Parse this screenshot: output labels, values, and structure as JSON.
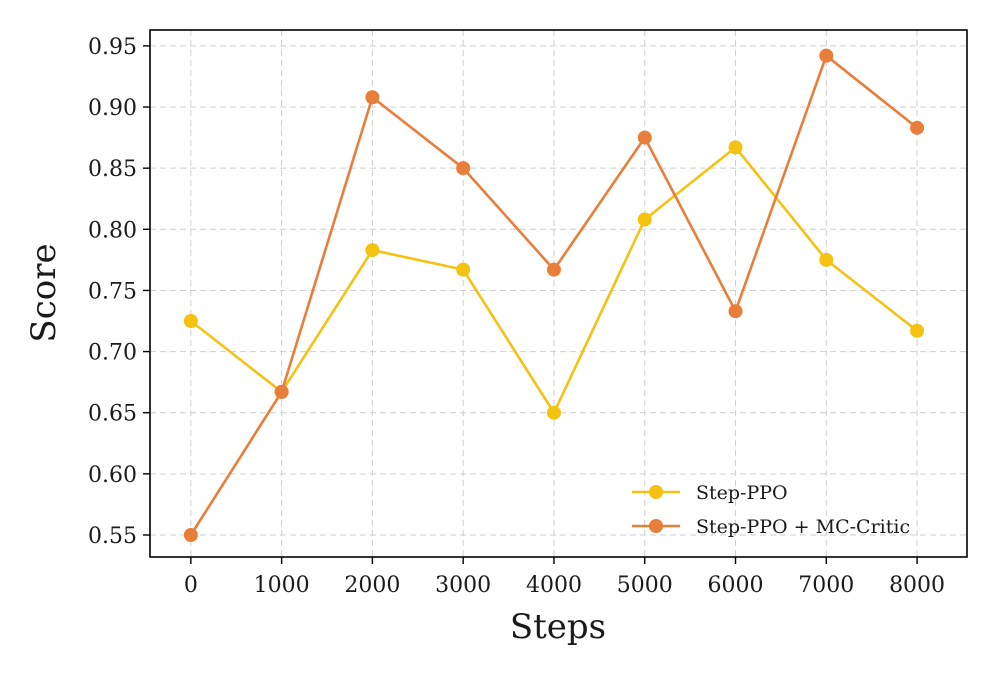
{
  "chart_data": {
    "type": "line",
    "title": "",
    "xlabel": "Steps",
    "ylabel": "Score",
    "x": [
      0,
      1000,
      2000,
      3000,
      4000,
      5000,
      6000,
      7000,
      8000
    ],
    "xlim": [
      -450,
      8550
    ],
    "ylim": [
      0.532,
      0.963
    ],
    "xticks": [
      0,
      1000,
      2000,
      3000,
      4000,
      5000,
      6000,
      7000,
      8000
    ],
    "yticks": [
      "0.55",
      "0.60",
      "0.65",
      "0.70",
      "0.75",
      "0.80",
      "0.85",
      "0.90",
      "0.95"
    ],
    "grid": true,
    "legend_position": "lower-right",
    "series": [
      {
        "name": "Step-PPO",
        "color": "#f5c211",
        "values": [
          0.725,
          0.667,
          0.783,
          0.767,
          0.65,
          0.808,
          0.867,
          0.775,
          0.717
        ]
      },
      {
        "name": "Step-PPO + MC-Critic",
        "color": "#e97e3a",
        "values": [
          0.55,
          0.667,
          0.908,
          0.85,
          0.767,
          0.875,
          0.733,
          0.942,
          0.883
        ]
      }
    ]
  }
}
